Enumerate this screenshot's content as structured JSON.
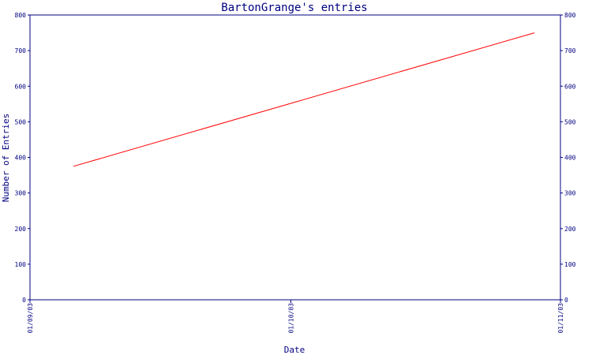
{
  "chart_data": {
    "type": "line",
    "title": "BartonGrange's entries",
    "xlabel": "Date",
    "ylabel": "Number of Entries",
    "ylim": [
      0,
      800
    ],
    "y_ticks": [
      "0",
      "100",
      "200",
      "300",
      "400",
      "500",
      "600",
      "700",
      "800"
    ],
    "x_ticks": [
      "01/09/03",
      "01/10/03",
      "01/11/03"
    ],
    "xlim": [
      "2003-09-01",
      "2003-11-01"
    ],
    "x_tick_dates": [
      "2003-09-01",
      "2003-10-01",
      "2003-11-01"
    ],
    "series": [
      {
        "color": "#ff0000",
        "x": [
          "2003-09-06",
          "2003-10-29"
        ],
        "y": [
          375,
          750
        ]
      }
    ],
    "grid": false,
    "colors": {
      "axis": "#000080",
      "line": "#ff0000",
      "background": "#ffffff"
    }
  }
}
